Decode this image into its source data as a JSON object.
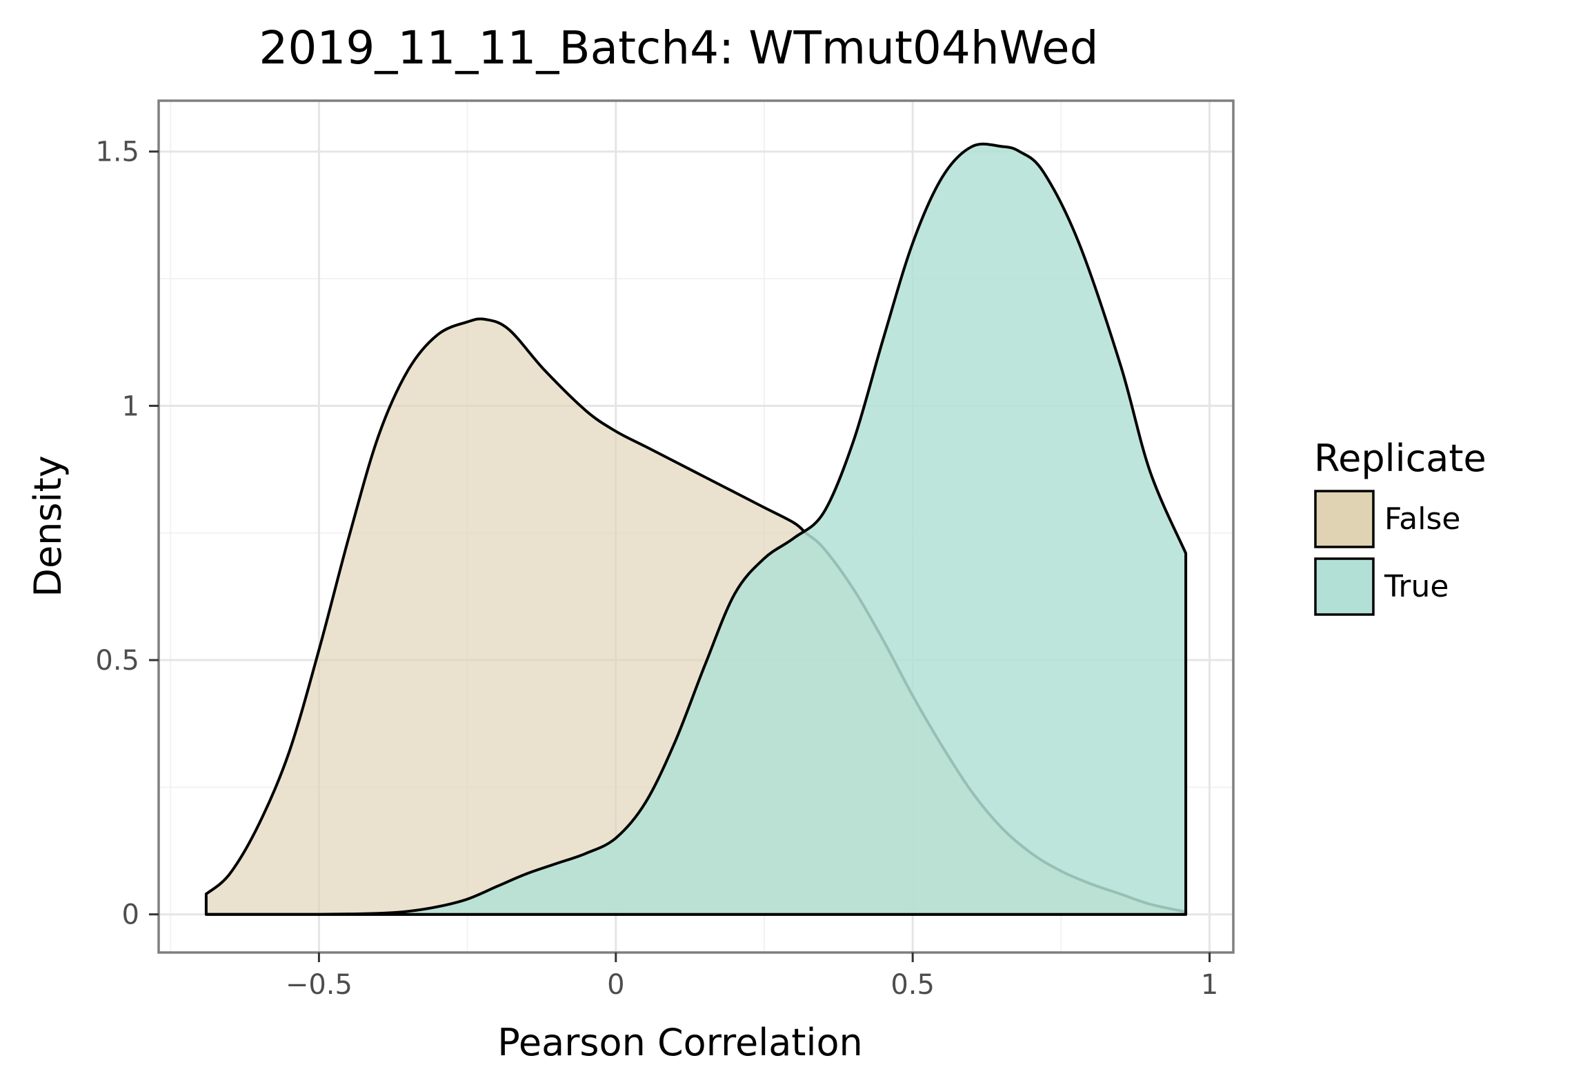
{
  "chart_data": {
    "type": "area",
    "title": "2019_11_11_Batch4: WTmut04hWed",
    "xlabel": "Pearson Correlation",
    "ylabel": "Density",
    "xlim": [
      -0.77,
      1.04
    ],
    "ylim": [
      -0.075,
      1.6
    ],
    "x_ticks": [
      {
        "value": -0.5,
        "label": "−0.5"
      },
      {
        "value": 0,
        "label": "0"
      },
      {
        "value": 0.5,
        "label": "0.5"
      },
      {
        "value": 1,
        "label": "1"
      }
    ],
    "y_ticks": [
      {
        "value": 0,
        "label": "0"
      },
      {
        "value": 0.5,
        "label": "0.5"
      },
      {
        "value": 1,
        "label": "1"
      },
      {
        "value": 1.5,
        "label": "1.5"
      }
    ],
    "grid": true,
    "legend": {
      "title": "Replicate",
      "position": "right",
      "entries": [
        {
          "label": "False",
          "color": "#dfd3b4"
        },
        {
          "label": "True",
          "color": "#b3e0d6"
        }
      ]
    },
    "series": [
      {
        "name": "False",
        "fill": "#dfd3b4",
        "fill_opacity": 0.65,
        "x": [
          -0.69,
          -0.65,
          -0.6,
          -0.55,
          -0.5,
          -0.45,
          -0.4,
          -0.35,
          -0.3,
          -0.25,
          -0.22,
          -0.18,
          -0.12,
          -0.05,
          0.0,
          0.05,
          0.1,
          0.15,
          0.2,
          0.25,
          0.3,
          0.32,
          0.35,
          0.4,
          0.45,
          0.5,
          0.55,
          0.6,
          0.65,
          0.7,
          0.75,
          0.8,
          0.85,
          0.9,
          0.96
        ],
        "y": [
          0.04,
          0.08,
          0.18,
          0.32,
          0.52,
          0.74,
          0.94,
          1.07,
          1.14,
          1.165,
          1.17,
          1.15,
          1.07,
          0.99,
          0.95,
          0.92,
          0.89,
          0.86,
          0.83,
          0.8,
          0.77,
          0.75,
          0.72,
          0.64,
          0.54,
          0.43,
          0.33,
          0.24,
          0.17,
          0.12,
          0.085,
          0.06,
          0.04,
          0.02,
          0.005
        ]
      },
      {
        "name": "True",
        "fill": "#b3e0d6",
        "fill_opacity": 0.85,
        "x": [
          -0.69,
          -0.6,
          -0.5,
          -0.4,
          -0.35,
          -0.3,
          -0.25,
          -0.2,
          -0.15,
          -0.1,
          -0.05,
          0.0,
          0.05,
          0.1,
          0.15,
          0.2,
          0.25,
          0.3,
          0.35,
          0.4,
          0.45,
          0.5,
          0.55,
          0.6,
          0.65,
          0.68,
          0.72,
          0.78,
          0.85,
          0.9,
          0.96
        ],
        "y": [
          0.0,
          0.0,
          0.0,
          0.002,
          0.006,
          0.015,
          0.03,
          0.055,
          0.08,
          0.1,
          0.12,
          0.15,
          0.22,
          0.34,
          0.49,
          0.63,
          0.7,
          0.74,
          0.79,
          0.93,
          1.13,
          1.32,
          1.45,
          1.51,
          1.51,
          1.5,
          1.46,
          1.32,
          1.08,
          0.87,
          0.71
        ]
      }
    ]
  }
}
